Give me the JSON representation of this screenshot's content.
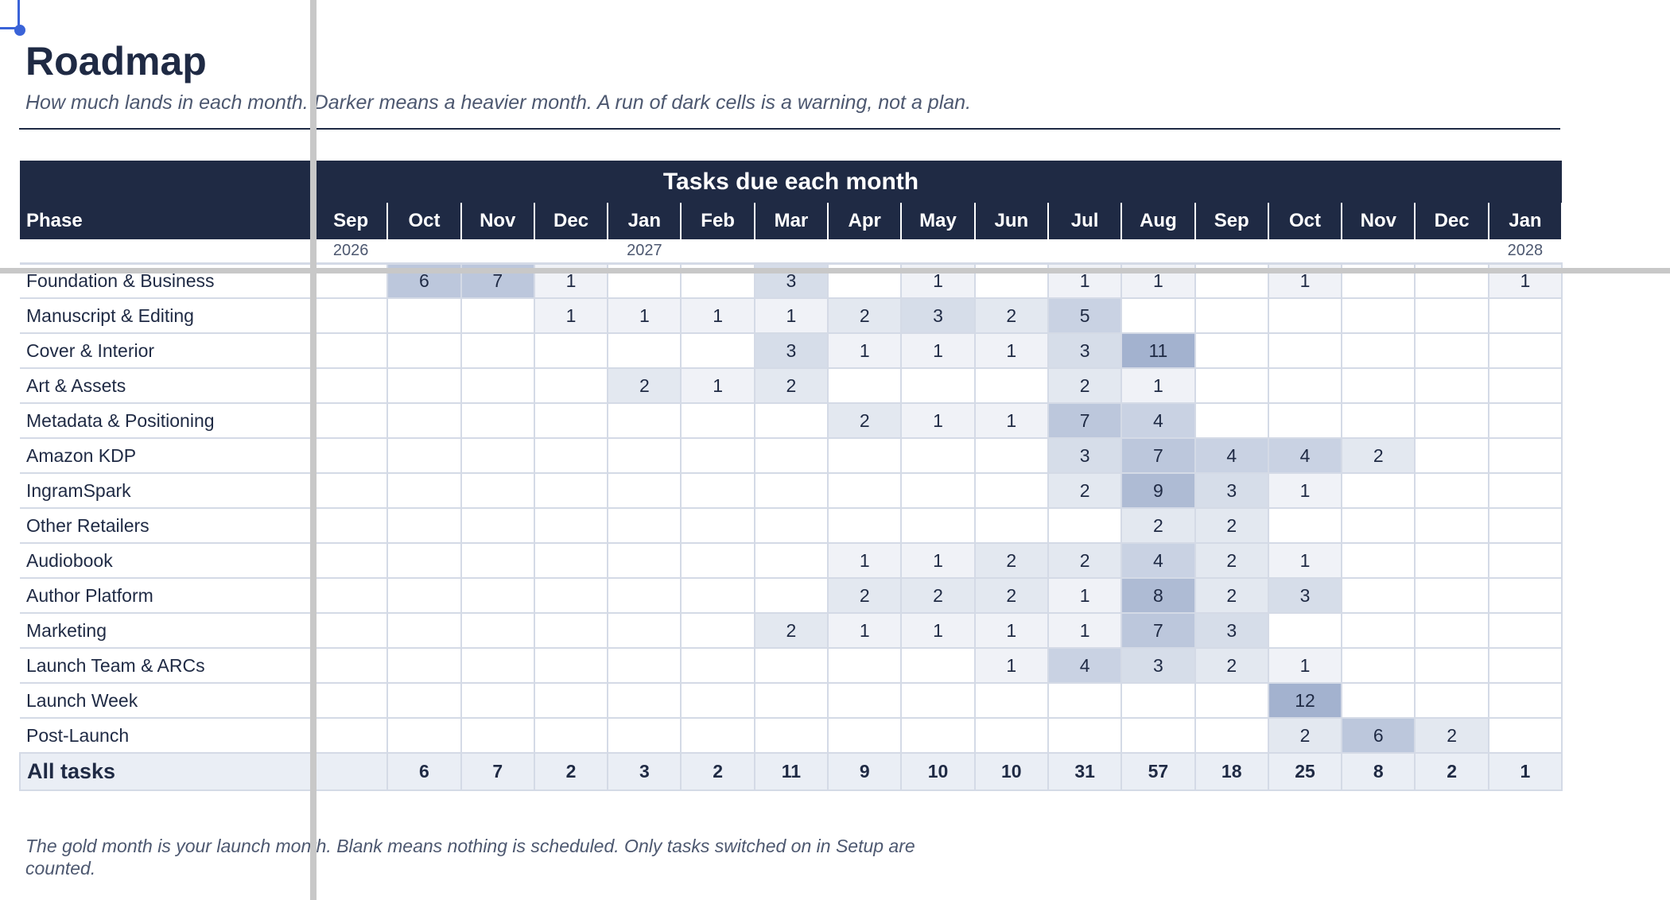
{
  "sheet": {
    "title": "Roadmap",
    "subtitle": "How much lands in each month. Darker means a heavier month. A run of dark cells is a warning, not a plan.",
    "band_title": "Tasks due each month",
    "phase_header": "Phase",
    "months": [
      "Sep",
      "Oct",
      "Nov",
      "Dec",
      "Jan",
      "Feb",
      "Mar",
      "Apr",
      "May",
      "Jun",
      "Jul",
      "Aug",
      "Sep",
      "Oct",
      "Nov",
      "Dec",
      "Jan"
    ],
    "years": [
      "2026",
      "",
      "",
      "",
      "2027",
      "",
      "",
      "",
      "",
      "",
      "",
      "",
      "",
      "",
      "",
      "",
      "2028"
    ],
    "footnote": "The gold month is your launch month. Blank means nothing is scheduled. Only tasks switched on in Setup are counted.",
    "heat_colors": {
      "level_1": "#f0f2f7",
      "level_2": "#e3e8f0",
      "level_3": "#d6dde9",
      "level_4": "#c9d2e3",
      "level_5": "#bcc7dc",
      "level_6": "#aebbd4",
      "level_7": "#a3b2cf"
    },
    "header_color": "#1f2a44",
    "total_label": "All tasks",
    "totals": [
      "",
      "6",
      "7",
      "2",
      "3",
      "2",
      "11",
      "9",
      "10",
      "10",
      "31",
      "57",
      "18",
      "25",
      "8",
      "2",
      "1"
    ],
    "rows": [
      {
        "phase": "Foundation & Business",
        "values": [
          "",
          "6",
          "7",
          "1",
          "",
          "",
          "3",
          "",
          "1",
          "",
          "1",
          "1",
          "",
          "1",
          "",
          "",
          "1"
        ]
      },
      {
        "phase": "Manuscript & Editing",
        "values": [
          "",
          "",
          "",
          "1",
          "1",
          "1",
          "1",
          "2",
          "3",
          "2",
          "5",
          "",
          "",
          "",
          "",
          "",
          ""
        ]
      },
      {
        "phase": "Cover & Interior",
        "values": [
          "",
          "",
          "",
          "",
          "",
          "",
          "3",
          "1",
          "1",
          "1",
          "3",
          "11",
          "",
          "",
          "",
          "",
          ""
        ]
      },
      {
        "phase": "Art & Assets",
        "values": [
          "",
          "",
          "",
          "",
          "2",
          "1",
          "2",
          "",
          "",
          "",
          "2",
          "1",
          "",
          "",
          "",
          "",
          ""
        ]
      },
      {
        "phase": "Metadata & Positioning",
        "values": [
          "",
          "",
          "",
          "",
          "",
          "",
          "",
          "2",
          "1",
          "1",
          "7",
          "4",
          "",
          "",
          "",
          "",
          ""
        ]
      },
      {
        "phase": "Amazon KDP",
        "values": [
          "",
          "",
          "",
          "",
          "",
          "",
          "",
          "",
          "",
          "",
          "3",
          "7",
          "4",
          "4",
          "2",
          "",
          ""
        ]
      },
      {
        "phase": "IngramSpark",
        "values": [
          "",
          "",
          "",
          "",
          "",
          "",
          "",
          "",
          "",
          "",
          "2",
          "9",
          "3",
          "1",
          "",
          "",
          ""
        ]
      },
      {
        "phase": "Other Retailers",
        "values": [
          "",
          "",
          "",
          "",
          "",
          "",
          "",
          "",
          "",
          "",
          "",
          "2",
          "2",
          "",
          "",
          "",
          ""
        ]
      },
      {
        "phase": "Audiobook",
        "values": [
          "",
          "",
          "",
          "",
          "",
          "",
          "",
          "1",
          "1",
          "2",
          "2",
          "4",
          "2",
          "1",
          "",
          "",
          ""
        ]
      },
      {
        "phase": "Author Platform",
        "values": [
          "",
          "",
          "",
          "",
          "",
          "",
          "",
          "2",
          "2",
          "2",
          "1",
          "8",
          "2",
          "3",
          "",
          "",
          ""
        ]
      },
      {
        "phase": "Marketing",
        "values": [
          "",
          "",
          "",
          "",
          "",
          "",
          "2",
          "1",
          "1",
          "1",
          "1",
          "7",
          "3",
          "",
          "",
          "",
          ""
        ]
      },
      {
        "phase": "Launch Team & ARCs",
        "values": [
          "",
          "",
          "",
          "",
          "",
          "",
          "",
          "",
          "",
          "1",
          "4",
          "3",
          "2",
          "1",
          "",
          "",
          ""
        ]
      },
      {
        "phase": "Launch Week",
        "values": [
          "",
          "",
          "",
          "",
          "",
          "",
          "",
          "",
          "",
          "",
          "",
          "",
          "",
          "12",
          "",
          "",
          ""
        ]
      },
      {
        "phase": "Post-Launch",
        "values": [
          "",
          "",
          "",
          "",
          "",
          "",
          "",
          "",
          "",
          "",
          "",
          "",
          "",
          "2",
          "6",
          "2",
          ""
        ]
      }
    ]
  }
}
